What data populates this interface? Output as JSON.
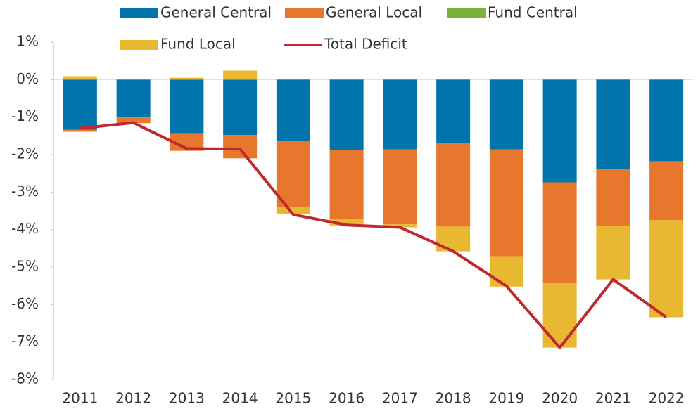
{
  "chart_data": {
    "type": "bar",
    "categories": [
      "2011",
      "2012",
      "2013",
      "2014",
      "2015",
      "2016",
      "2017",
      "2018",
      "2019",
      "2020",
      "2021",
      "2022"
    ],
    "stacked": true,
    "series": [
      {
        "name": "General Central",
        "color": "#0074ab",
        "values": [
          -1.34,
          -1.01,
          -1.43,
          -1.48,
          -1.63,
          -1.88,
          -1.86,
          -1.69,
          -1.86,
          -2.74,
          -2.38,
          -2.18
        ]
      },
      {
        "name": "General Local",
        "color": "#e8772e",
        "values": [
          -0.05,
          -0.15,
          -0.47,
          -0.62,
          -1.77,
          -1.84,
          -2.0,
          -2.23,
          -2.85,
          -2.68,
          -1.52,
          -1.57
        ]
      },
      {
        "name": "Fund Central",
        "color": "#7ab33a",
        "values": [
          0,
          0,
          0,
          0,
          0,
          0,
          0,
          0,
          0,
          0,
          0,
          0
        ]
      },
      {
        "name": "Fund Local",
        "color": "#e8b830",
        "values": [
          0.09,
          0,
          0.05,
          0.24,
          -0.18,
          -0.17,
          -0.08,
          -0.66,
          -0.81,
          -1.73,
          -1.43,
          -2.59
        ]
      },
      {
        "name": "Total Deficit",
        "type": "line",
        "color": "#c0282d",
        "values": [
          -1.3,
          -1.15,
          -1.84,
          -1.85,
          -3.6,
          -3.88,
          -3.94,
          -4.58,
          -5.51,
          -7.15,
          -5.33,
          -6.34
        ]
      }
    ],
    "ylim": [
      -8,
      1
    ],
    "yticks": [
      {
        "value": 1,
        "label": "1%"
      },
      {
        "value": 0,
        "label": "0%"
      },
      {
        "value": -1,
        "label": "-1%"
      },
      {
        "value": -2,
        "label": "-2%"
      },
      {
        "value": -3,
        "label": "-3%"
      },
      {
        "value": -4,
        "label": "-4%"
      },
      {
        "value": -5,
        "label": "-5%"
      },
      {
        "value": -6,
        "label": "-6%"
      },
      {
        "value": -7,
        "label": "-7%"
      },
      {
        "value": -8,
        "label": "-8%"
      }
    ],
    "legend": "top"
  }
}
